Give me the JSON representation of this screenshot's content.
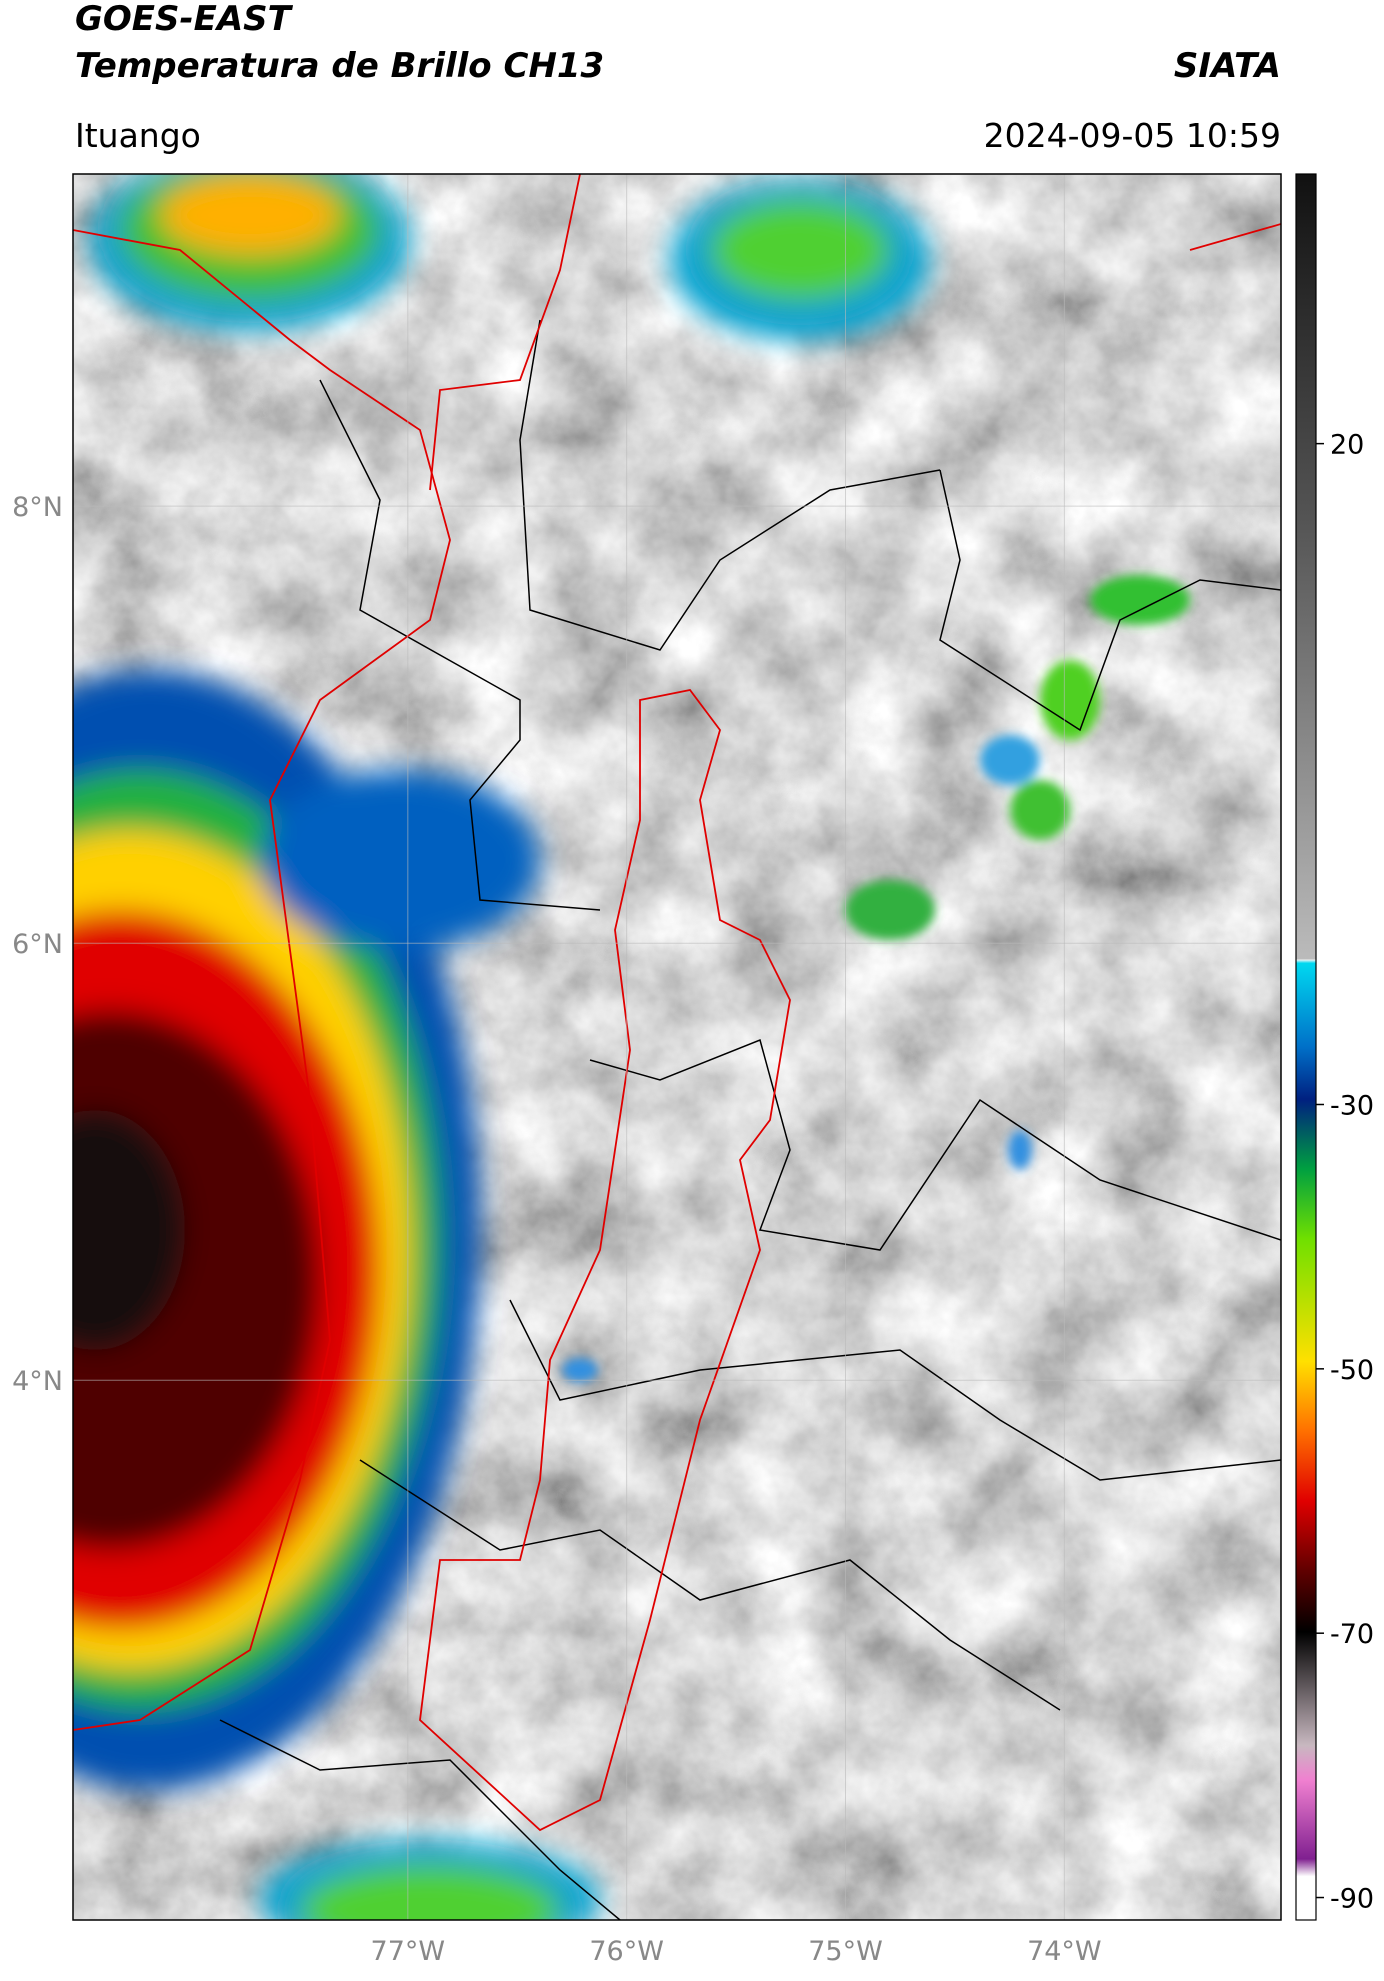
{
  "header": {
    "title": "GOES-EAST",
    "subtitle": "Temperatura de Brillo CH13",
    "source": "SIATA",
    "location": "Ituango",
    "datetime": "2024-09-05 10:59"
  },
  "map": {
    "xlim": [
      -78.53,
      -73.01
    ],
    "ylim": [
      1.53,
      9.52
    ],
    "xticks": [
      {
        "value": -77,
        "label": "77°W"
      },
      {
        "value": -76,
        "label": "76°W"
      },
      {
        "value": -75,
        "label": "75°W"
      },
      {
        "value": -74,
        "label": "74°W"
      }
    ],
    "yticks": [
      {
        "value": 4,
        "label": "4°N"
      },
      {
        "value": 6,
        "label": "6°N"
      },
      {
        "value": 8,
        "label": "8°N"
      }
    ],
    "grid": true
  },
  "colorbar": {
    "lim": [
      -91.7,
      40.4
    ],
    "ticks": [
      -90,
      -70,
      -50,
      -30,
      20
    ]
  }
}
